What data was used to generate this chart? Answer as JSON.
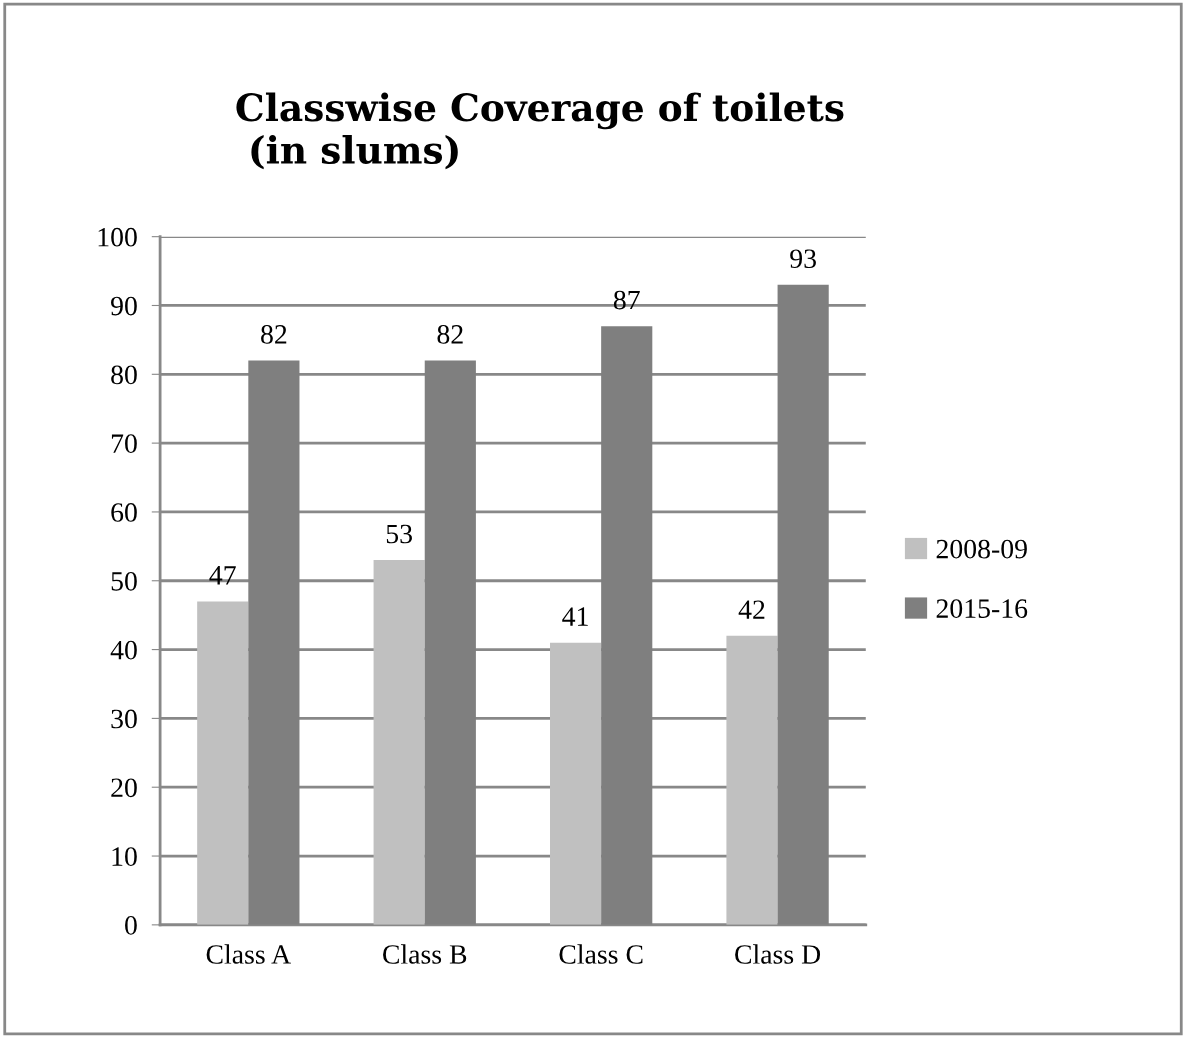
{
  "chart_data": {
    "type": "bar",
    "title": "Classwise Coverage of toilets\n (in slums)",
    "categories": [
      "Class A",
      "Class B",
      "Class C",
      "Class D"
    ],
    "series": [
      {
        "name": "2008-09",
        "color": "#c0c0c0",
        "values": [
          47,
          53,
          41,
          42
        ]
      },
      {
        "name": "2015-16",
        "color": "#7f7f7f",
        "values": [
          82,
          82,
          87,
          93
        ]
      }
    ],
    "ylim": [
      0,
      100
    ],
    "yticks": [
      0,
      10,
      20,
      30,
      40,
      50,
      60,
      70,
      80,
      90,
      100
    ],
    "grid": "y",
    "legend": "right",
    "data_labels": true
  }
}
